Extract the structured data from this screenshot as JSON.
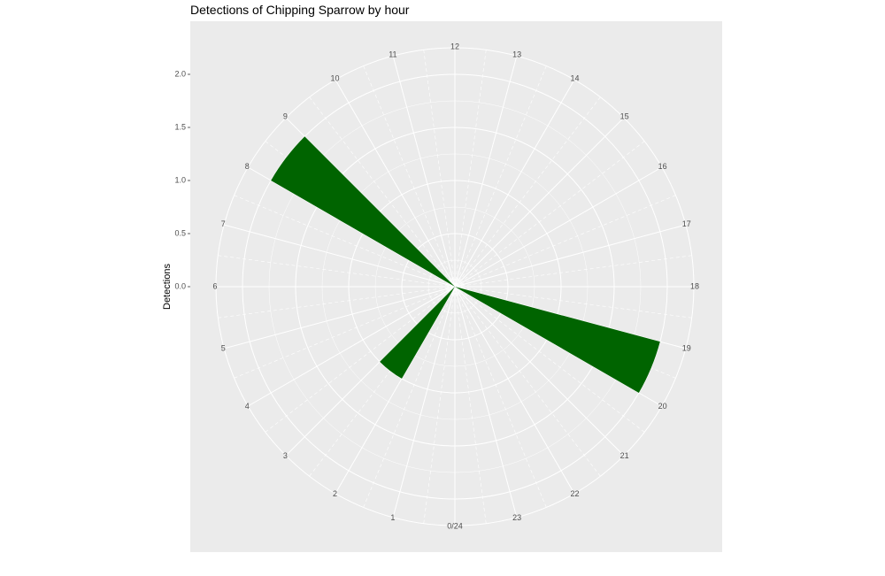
{
  "chart_data": {
    "type": "polar_bar",
    "title": "Detections of Chipping Sparrow by hour",
    "y_label": "Detections",
    "categories": [
      "0/24",
      "1",
      "2",
      "3",
      "4",
      "5",
      "6",
      "7",
      "8",
      "9",
      "10",
      "11",
      "12",
      "13",
      "14",
      "15",
      "16",
      "17",
      "18",
      "19",
      "20",
      "21",
      "22",
      "23"
    ],
    "values": [
      0,
      0,
      1,
      0,
      0,
      0,
      0,
      0,
      2,
      0,
      0,
      0,
      0,
      0,
      0,
      0,
      0,
      0,
      0,
      2,
      0,
      0,
      0,
      0
    ],
    "color": "#006400",
    "ylim": [
      0,
      2.25
    ],
    "yticks": [
      {
        "value": 0,
        "label": "0.0"
      },
      {
        "value": 0.5,
        "label": "0.5"
      },
      {
        "value": 1,
        "label": "1.0"
      },
      {
        "value": 1.5,
        "label": "1.5"
      },
      {
        "value": 2,
        "label": "2.0"
      }
    ],
    "grid": true
  }
}
